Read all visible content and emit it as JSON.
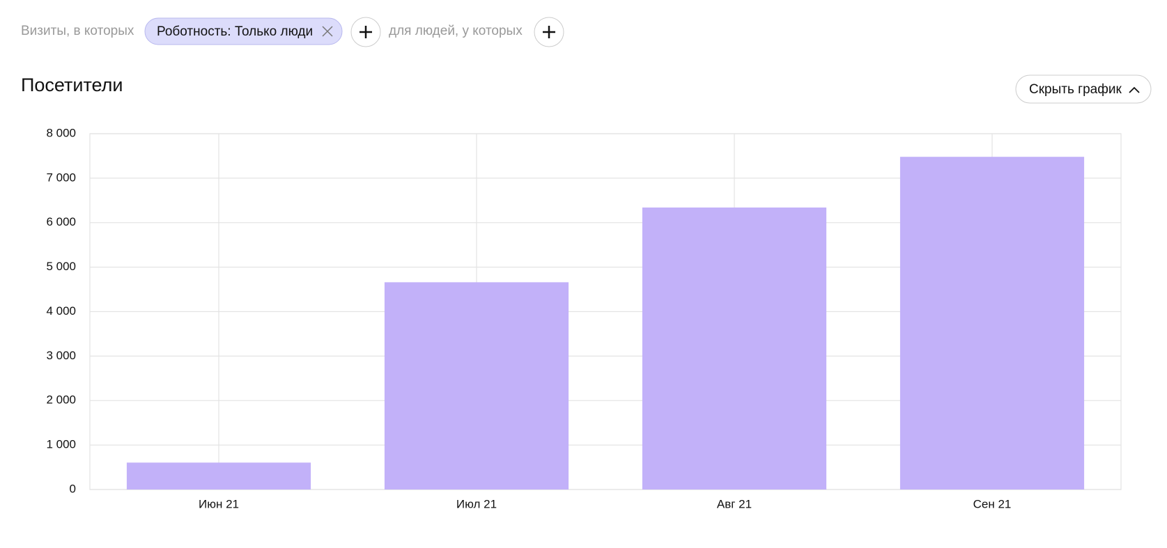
{
  "filter_bar": {
    "prefix": "Визиты, в которых",
    "chip": "Роботность: Только люди",
    "suffix": "для людей, у которых"
  },
  "section_title": "Посетители",
  "toggle_button": "Скрыть график",
  "chart_data": {
    "type": "bar",
    "categories": [
      "Июн 21",
      "Июл 21",
      "Авг 21",
      "Сен 21"
    ],
    "values": [
      605,
      4660,
      6340,
      7480
    ],
    "color": "#c2b1f9",
    "ylim": [
      0,
      8000
    ],
    "yticks": [
      0,
      {
        "value": 1000,
        "label": "1 000"
      },
      {
        "value": 2000,
        "label": "2 000"
      },
      {
        "value": 3000,
        "label": "3 000"
      },
      {
        "value": 4000,
        "label": "4 000"
      },
      {
        "value": 5000,
        "label": "5 000"
      },
      {
        "value": 6000,
        "label": "6 000"
      },
      {
        "value": 7000,
        "label": "7 000"
      },
      {
        "value": 8000,
        "label": "8 000"
      }
    ],
    "grid": true
  }
}
